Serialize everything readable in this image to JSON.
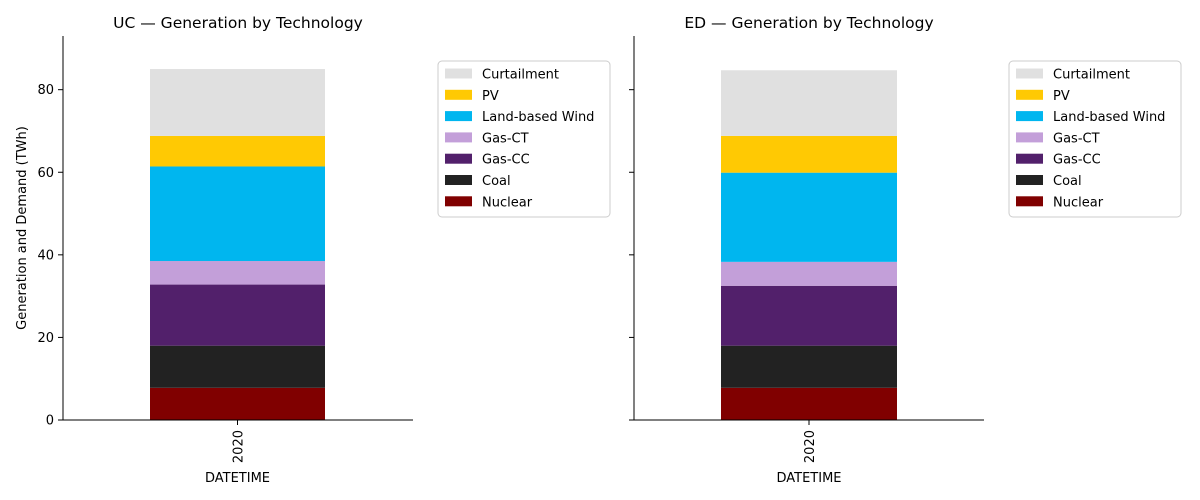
{
  "chart_data": [
    {
      "type": "bar",
      "stacked": true,
      "title": "UC — Generation by Technology",
      "xlabel": "DATETIME",
      "ylabel": "Generation and Demand (TWh)",
      "categories": [
        "2020"
      ],
      "ylim": [
        0,
        93
      ],
      "yticks": [
        "0",
        "20",
        "40",
        "60",
        "80"
      ],
      "legend_position": "outside-right",
      "series": [
        {
          "name": "Nuclear",
          "color": "#800000",
          "values": [
            7.8
          ]
        },
        {
          "name": "Coal",
          "color": "#222222",
          "values": [
            10.2
          ]
        },
        {
          "name": "Gas-CC",
          "color": "#52206b",
          "values": [
            14.8
          ]
        },
        {
          "name": "Gas-CT",
          "color": "#c39fd9",
          "values": [
            5.7
          ]
        },
        {
          "name": "Land-based Wind",
          "color": "#00b6ef",
          "values": [
            22.9
          ]
        },
        {
          "name": "PV",
          "color": "#ffc903",
          "values": [
            7.4
          ]
        },
        {
          "name": "Curtailment",
          "color": "#e0e0e0",
          "values": [
            16.2
          ]
        }
      ]
    },
    {
      "type": "bar",
      "stacked": true,
      "title": "ED — Generation by Technology",
      "xlabel": "DATETIME",
      "ylabel": "",
      "categories": [
        "2020"
      ],
      "ylim": [
        0,
        93
      ],
      "yticks": [
        "",
        "",
        "",
        "",
        ""
      ],
      "legend_position": "outside-right",
      "series": [
        {
          "name": "Nuclear",
          "color": "#800000",
          "values": [
            7.8
          ]
        },
        {
          "name": "Coal",
          "color": "#222222",
          "values": [
            10.2
          ]
        },
        {
          "name": "Gas-CC",
          "color": "#52206b",
          "values": [
            14.5
          ]
        },
        {
          "name": "Gas-CT",
          "color": "#c39fd9",
          "values": [
            5.8
          ]
        },
        {
          "name": "Land-based Wind",
          "color": "#00b6ef",
          "values": [
            21.6
          ]
        },
        {
          "name": "PV",
          "color": "#ffc903",
          "values": [
            8.9
          ]
        },
        {
          "name": "Curtailment",
          "color": "#e0e0e0",
          "values": [
            15.9
          ]
        }
      ]
    }
  ]
}
